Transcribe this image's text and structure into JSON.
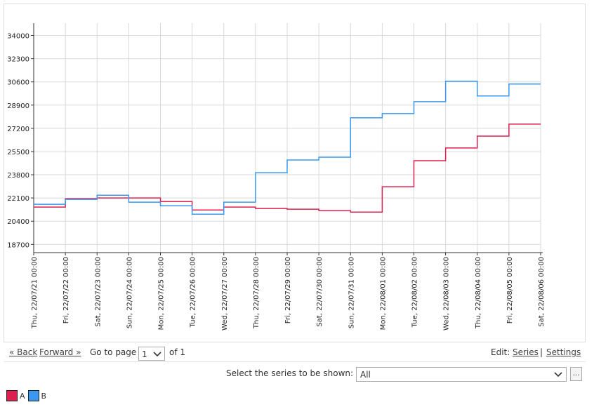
{
  "chart_data": {
    "type": "step",
    "categories": [
      "Thu, 22/07/21 00:00",
      "Fri, 22/07/22 00:00",
      "Sat, 22/07/23 00:00",
      "Sun, 22/07/24 00:00",
      "Mon, 22/07/25 00:00",
      "Tue, 22/07/26 00:00",
      "Wed, 22/07/27 00:00",
      "Thu, 22/07/28 00:00",
      "Fri, 22/07/29 00:00",
      "Sat, 22/07/30 00:00",
      "Sun, 22/07/31 00:00",
      "Mon, 22/08/01 00:00",
      "Tue, 22/08/02 00:00",
      "Wed, 22/08/03 00:00",
      "Thu, 22/08/04 00:00",
      "Fri, 22/08/05 00:00",
      "Sat, 22/08/06 00:00"
    ],
    "series": [
      {
        "name": "A",
        "color": "#dc2050",
        "values": [
          21430,
          22050,
          22100,
          22100,
          21840,
          21220,
          21430,
          21330,
          21280,
          21170,
          21070,
          22920,
          24830,
          25760,
          26630,
          27510,
          27510
        ]
      },
      {
        "name": "B",
        "color": "#3a98f0",
        "values": [
          21640,
          22000,
          22300,
          21790,
          21530,
          20910,
          21790,
          23950,
          24880,
          25090,
          27970,
          28280,
          29150,
          30650,
          29570,
          30440,
          30440
        ]
      }
    ],
    "ylim": [
      18100,
      34900
    ],
    "yticks": [
      18700,
      20400,
      22100,
      23800,
      25500,
      27200,
      28900,
      30600,
      32300,
      34000
    ],
    "grid": true
  },
  "pager": {
    "back": "« Back",
    "forward": "Forward »",
    "go_to_page": "Go to page",
    "page": "1",
    "of": "of 1"
  },
  "edit": {
    "label": "Edit:",
    "series": "Series",
    "separator": "|",
    "settings": "Settings"
  },
  "series_select": {
    "label": "Select the series to be shown:",
    "value": "All",
    "button": "..."
  }
}
